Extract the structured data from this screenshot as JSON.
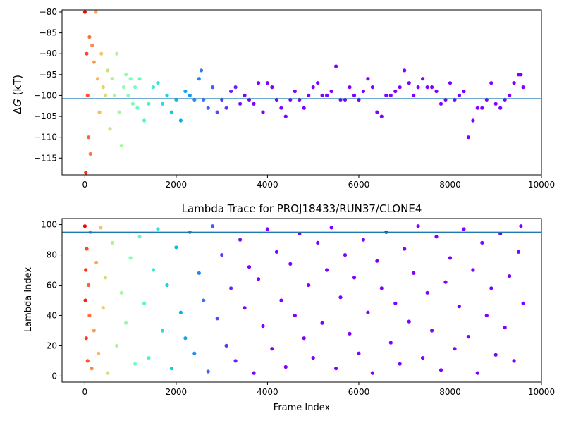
{
  "chart_data": [
    {
      "type": "scatter",
      "title": "",
      "xlabel": "",
      "ylabel": "ΔG (kT)",
      "ylabel_symbol": "Δ",
      "ylabel_var": "G",
      "ylabel_unit": " (kT)",
      "xlim": [
        -500,
        10000
      ],
      "ylim": [
        -119,
        -79.5
      ],
      "xticks": [
        0,
        2000,
        4000,
        6000,
        8000,
        10000
      ],
      "yticks": [
        -115,
        -110,
        -105,
        -100,
        -95,
        -90,
        -85,
        -80
      ],
      "xtick_labels": [
        "0",
        "2000",
        "4000",
        "6000",
        "8000",
        "10000"
      ],
      "ytick_labels": [
        "−115",
        "−110",
        "−105",
        "−100",
        "−95",
        "−90",
        "−85",
        "−80"
      ],
      "hline": -100.8,
      "hline_color": "#1f77b4",
      "colormap": "rainbow",
      "series": [
        {
          "x": [
            0,
            20,
            40,
            60,
            80,
            100,
            120,
            160,
            200,
            240,
            280,
            320,
            360,
            400,
            450,
            500,
            550,
            600,
            650,
            700,
            750,
            800,
            850,
            900,
            950,
            1000,
            1050,
            1100,
            1150,
            1200,
            1300,
            1400,
            1500,
            1600,
            1700,
            1800,
            1900,
            2000,
            2100,
            2200,
            2300,
            2400,
            2500,
            2550,
            2600,
            2700,
            2800,
            2900,
            3000,
            3100,
            3200,
            3300,
            3400,
            3500,
            3600,
            3700,
            3800,
            3900,
            4000,
            4100,
            4200,
            4300,
            4400,
            4500,
            4600,
            4700,
            4800,
            4900,
            5000,
            5100,
            5200,
            5300,
            5400,
            5500,
            5600,
            5700,
            5800,
            5900,
            6000,
            6100,
            6200,
            6300,
            6400,
            6500,
            6600,
            6700,
            6800,
            6900,
            7000,
            7100,
            7200,
            7300,
            7400,
            7500,
            7600,
            7700,
            7800,
            7900,
            8000,
            8100,
            8200,
            8300,
            8400,
            8500,
            8600,
            8700,
            8800,
            8900,
            9000,
            9100,
            9200,
            9300,
            9400,
            9500,
            9550,
            9600
          ],
          "y": [
            -80,
            -118.5,
            -90,
            -100,
            -110,
            -86,
            -114,
            -88,
            -92,
            -80,
            -96,
            -104,
            -90,
            -98,
            -100,
            -94,
            -108,
            -96,
            -100,
            -90,
            -104,
            -112,
            -98,
            -95,
            -100,
            -96,
            -102,
            -98,
            -103,
            -96,
            -106,
            -102,
            -98,
            -97,
            -102,
            -100,
            -104,
            -101,
            -106,
            -99,
            -100,
            -101,
            -96,
            -94,
            -101,
            -103,
            -98,
            -104,
            -101,
            -103,
            -99,
            -98,
            -102,
            -100,
            -101,
            -102,
            -97,
            -104,
            -97,
            -98,
            -101,
            -103,
            -105,
            -101,
            -99,
            -101,
            -103,
            -100,
            -98,
            -97,
            -100,
            -100,
            -99,
            -93,
            -101,
            -101,
            -98,
            -100,
            -101,
            -99,
            -96,
            -98,
            -104,
            -105,
            -100,
            -100,
            -99,
            -98,
            -94,
            -97,
            -100,
            -98,
            -96,
            -98,
            -98,
            -99,
            -102,
            -101,
            -97,
            -101,
            -100,
            -99,
            -110,
            -106,
            -103,
            -103,
            -101,
            -97,
            -102,
            -103,
            -101,
            -100,
            -97,
            -95,
            -95,
            -98
          ]
        }
      ]
    },
    {
      "type": "scatter",
      "title": "Lambda Trace for PROJ18433/RUN37/CLONE4",
      "xlabel": "Frame Index",
      "ylabel": "Lambda Index",
      "xlim": [
        -500,
        10000
      ],
      "ylim": [
        -4,
        104
      ],
      "xticks": [
        0,
        2000,
        4000,
        6000,
        8000,
        10000
      ],
      "yticks": [
        0,
        20,
        40,
        60,
        80,
        100
      ],
      "xtick_labels": [
        "0",
        "2000",
        "4000",
        "6000",
        "8000",
        "10000"
      ],
      "ytick_labels": [
        "0",
        "20",
        "40",
        "60",
        "80",
        "100"
      ],
      "hline": 95,
      "hline_color": "#1f77b4",
      "colormap": "rainbow",
      "series": [
        {
          "x": [
            0,
            10,
            20,
            30,
            40,
            60,
            80,
            100,
            120,
            150,
            200,
            250,
            300,
            350,
            400,
            450,
            500,
            600,
            700,
            800,
            900,
            1000,
            1100,
            1200,
            1300,
            1400,
            1500,
            1600,
            1700,
            1800,
            1900,
            2000,
            2100,
            2200,
            2300,
            2400,
            2500,
            2600,
            2700,
            2800,
            2900,
            3000,
            3100,
            3200,
            3300,
            3400,
            3500,
            3600,
            3700,
            3800,
            3900,
            4000,
            4100,
            4200,
            4300,
            4400,
            4500,
            4600,
            4700,
            4800,
            4900,
            5000,
            5100,
            5200,
            5300,
            5400,
            5500,
            5600,
            5700,
            5800,
            5900,
            6000,
            6100,
            6200,
            6300,
            6400,
            6500,
            6600,
            6700,
            6800,
            6900,
            7000,
            7100,
            7200,
            7300,
            7400,
            7500,
            7600,
            7700,
            7800,
            7900,
            8000,
            8100,
            8200,
            8300,
            8400,
            8500,
            8600,
            8700,
            8800,
            8900,
            9000,
            9100,
            9200,
            9300,
            9400,
            9500,
            9550,
            9600
          ],
          "y": [
            99,
            50,
            70,
            25,
            84,
            10,
            60,
            40,
            95,
            5,
            30,
            75,
            15,
            98,
            45,
            65,
            2,
            88,
            20,
            55,
            35,
            78,
            8,
            92,
            48,
            12,
            70,
            97,
            30,
            60,
            5,
            85,
            42,
            25,
            95,
            15,
            68,
            50,
            3,
            99,
            38,
            80,
            20,
            58,
            10,
            90,
            45,
            72,
            2,
            64,
            33,
            97,
            18,
            82,
            50,
            6,
            74,
            40,
            94,
            25,
            60,
            12,
            88,
            35,
            70,
            98,
            5,
            52,
            80,
            28,
            65,
            15,
            90,
            42,
            2,
            76,
            58,
            95,
            22,
            48,
            8,
            84,
            36,
            68,
            99,
            12,
            55,
            30,
            92,
            4,
            62,
            78,
            18,
            46,
            97,
            26,
            70,
            2,
            88,
            40,
            58,
            14,
            94,
            32,
            66,
            10,
            82,
            99,
            48
          ]
        }
      ]
    }
  ]
}
